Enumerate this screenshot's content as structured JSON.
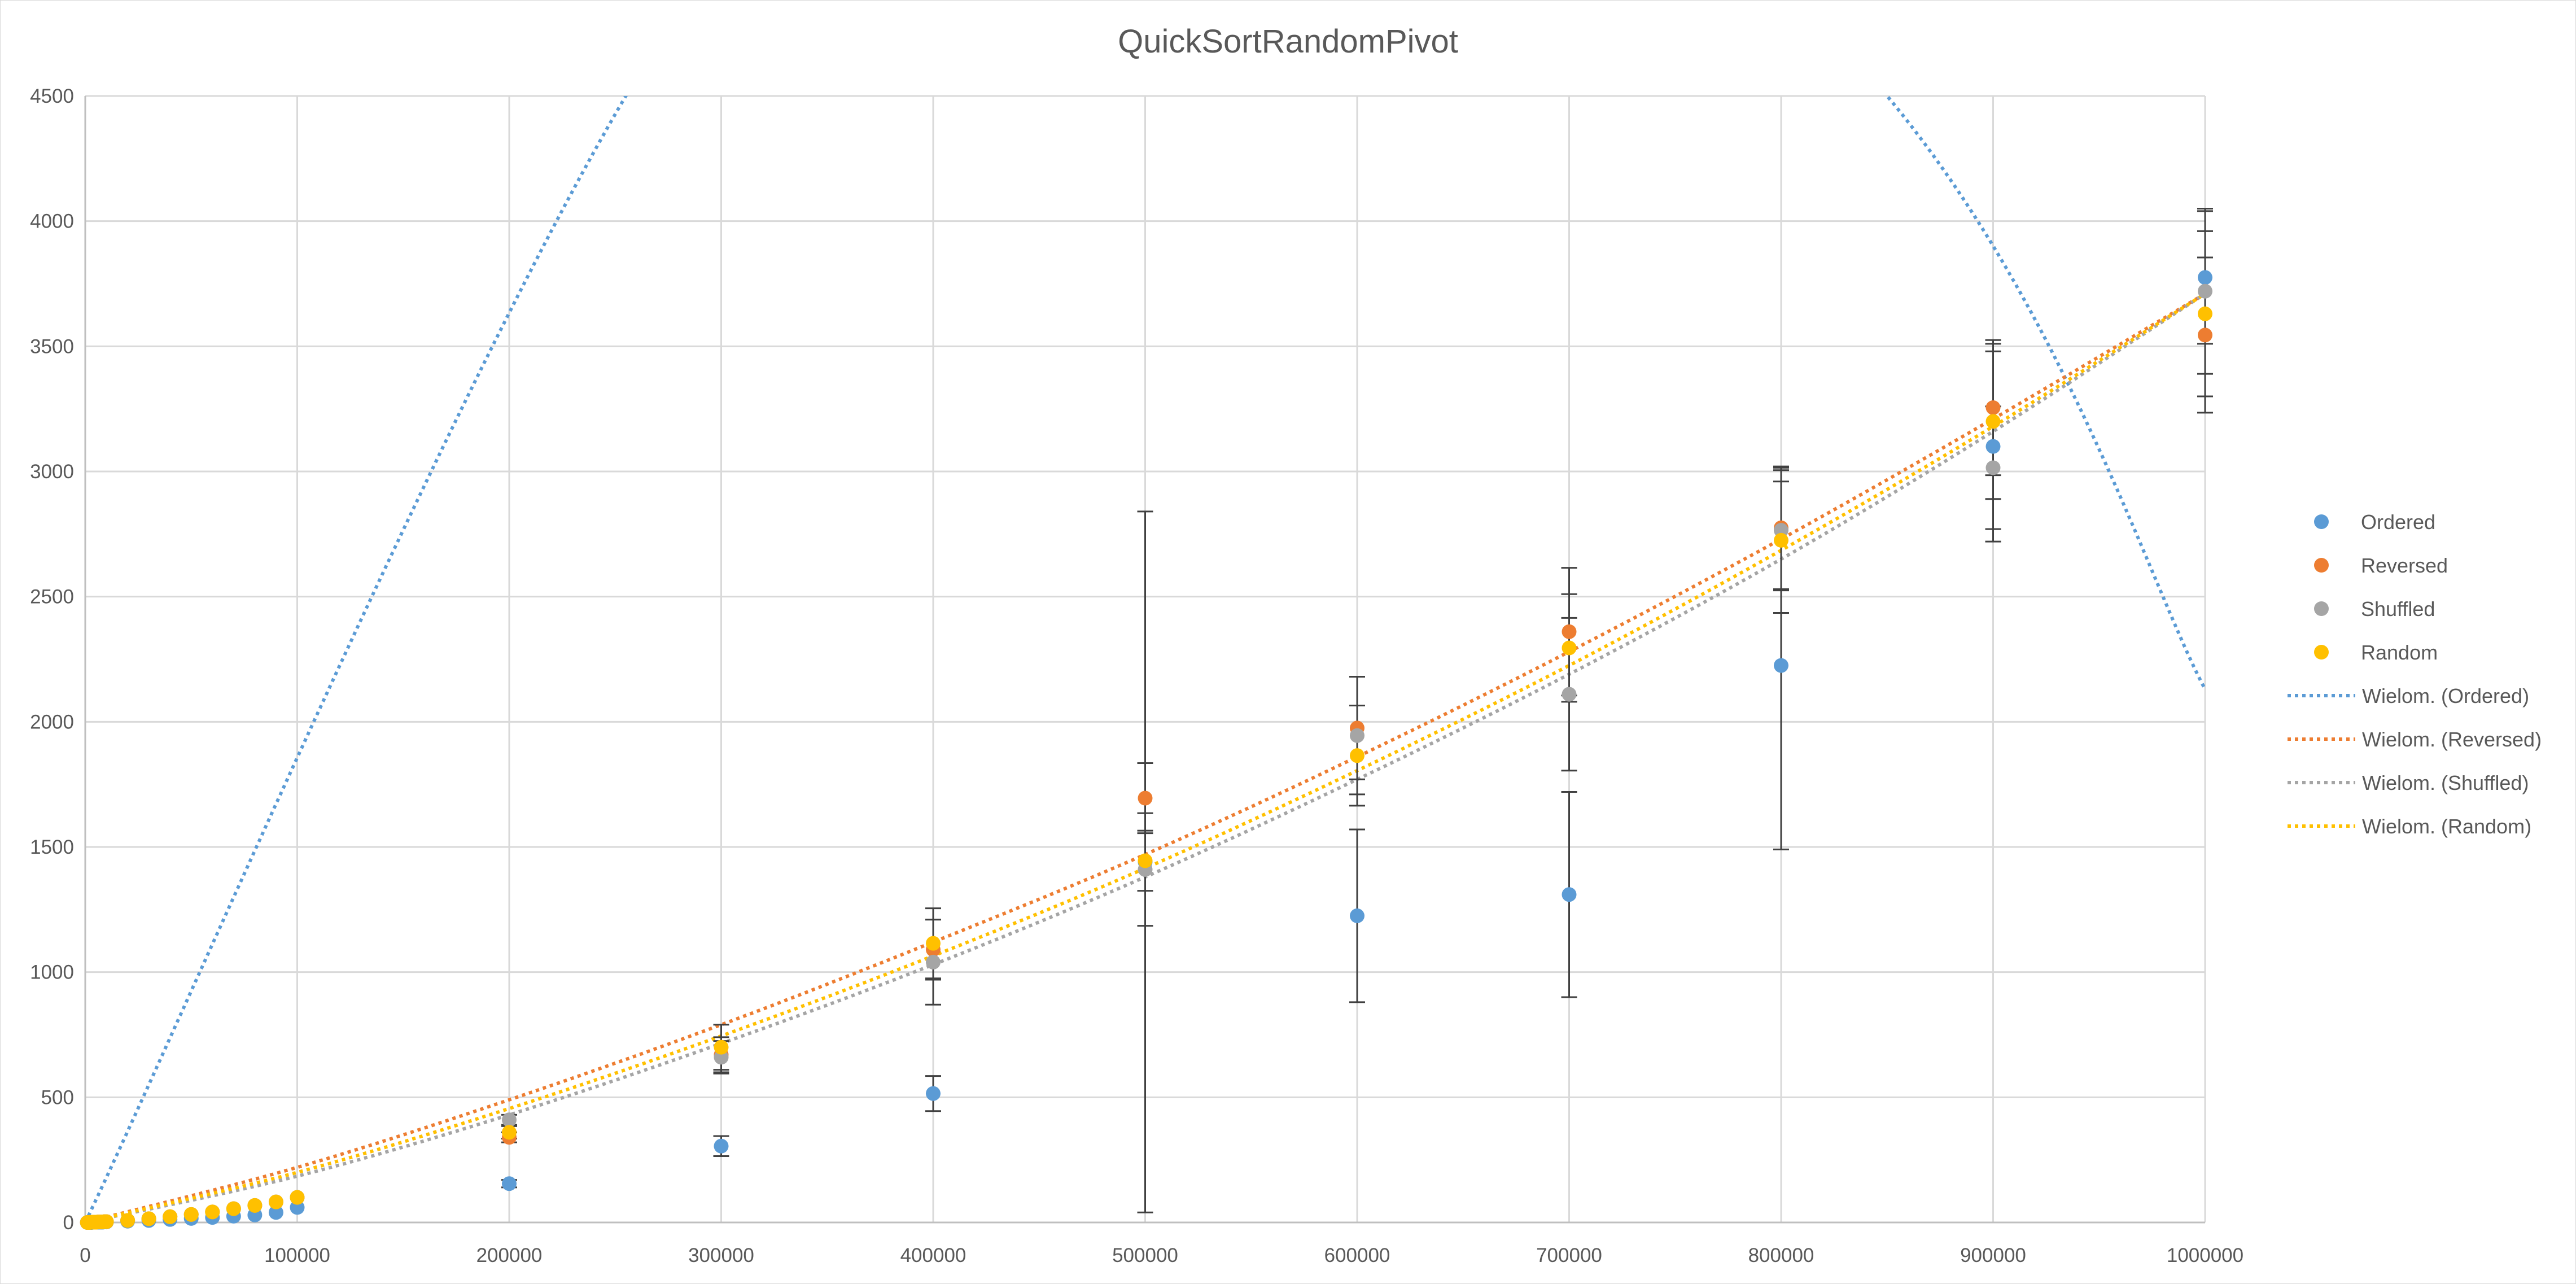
{
  "chart_data": {
    "type": "scatter",
    "title": "QuickSortRandomPivot",
    "xlabel": "",
    "ylabel": "",
    "xlim": [
      0,
      1000000
    ],
    "ylim": [
      0,
      4500
    ],
    "x_ticks": [
      0,
      100000,
      200000,
      300000,
      400000,
      500000,
      600000,
      700000,
      800000,
      900000,
      1000000
    ],
    "y_ticks": [
      0,
      500,
      1000,
      1500,
      2000,
      2500,
      3000,
      3500,
      4000,
      4500
    ],
    "grid": true,
    "legend_position": "right",
    "series": [
      {
        "name": "Ordered",
        "color": "#5B9BD5",
        "x": [
          1000,
          2000,
          3000,
          4000,
          5000,
          6000,
          7000,
          8000,
          9000,
          10000,
          20000,
          30000,
          40000,
          50000,
          60000,
          70000,
          80000,
          90000,
          100000,
          200000,
          300000,
          400000,
          500000,
          600000,
          700000,
          800000,
          900000,
          1000000
        ],
        "y": [
          0,
          0,
          0,
          1,
          1,
          1,
          1,
          1,
          2,
          2,
          5,
          8,
          12,
          16,
          20,
          25,
          30,
          40,
          60,
          155,
          305,
          515,
          1440,
          1225,
          1310,
          2225,
          3100,
          3775
        ],
        "error": [
          0,
          0,
          0,
          0,
          0,
          0,
          0,
          0,
          0,
          0,
          0,
          0,
          0,
          0,
          0,
          0,
          0,
          0,
          0,
          15,
          40,
          70,
          1400,
          345,
          410,
          735,
          380,
          265
        ]
      },
      {
        "name": "Reversed",
        "color": "#ED7D31",
        "x": [
          1000,
          2000,
          3000,
          4000,
          5000,
          6000,
          7000,
          8000,
          9000,
          10000,
          20000,
          30000,
          40000,
          50000,
          60000,
          70000,
          80000,
          90000,
          100000,
          200000,
          300000,
          400000,
          500000,
          600000,
          700000,
          800000,
          900000,
          1000000
        ],
        "y": [
          0,
          0,
          1,
          1,
          1,
          2,
          2,
          2,
          3,
          3,
          8,
          15,
          23,
          32,
          42,
          55,
          68,
          82,
          100,
          340,
          670,
          1090,
          1695,
          1975,
          2360,
          2775,
          3255,
          3545
        ],
        "error": [
          0,
          0,
          0,
          0,
          0,
          0,
          0,
          0,
          0,
          0,
          0,
          0,
          0,
          0,
          0,
          0,
          0,
          0,
          0,
          20,
          70,
          120,
          140,
          205,
          255,
          245,
          270,
          310
        ]
      },
      {
        "name": "Shuffled",
        "color": "#A5A5A5",
        "x": [
          1000,
          2000,
          3000,
          4000,
          5000,
          6000,
          7000,
          8000,
          9000,
          10000,
          20000,
          30000,
          40000,
          50000,
          60000,
          70000,
          80000,
          90000,
          100000,
          200000,
          300000,
          400000,
          500000,
          600000,
          700000,
          800000,
          900000,
          1000000
        ],
        "y": [
          0,
          0,
          1,
          1,
          1,
          2,
          2,
          2,
          3,
          3,
          8,
          15,
          23,
          32,
          42,
          55,
          68,
          82,
          100,
          410,
          660,
          1040,
          1410,
          1945,
          2110,
          2765,
          3015,
          3720
        ],
        "error": [
          0,
          0,
          0,
          0,
          0,
          0,
          0,
          0,
          0,
          0,
          0,
          0,
          0,
          0,
          0,
          0,
          0,
          0,
          0,
          20,
          65,
          170,
          225,
          235,
          305,
          240,
          245,
          330
        ]
      },
      {
        "name": "Random",
        "color": "#FFC000",
        "x": [
          1000,
          2000,
          3000,
          4000,
          5000,
          6000,
          7000,
          8000,
          9000,
          10000,
          20000,
          30000,
          40000,
          50000,
          60000,
          70000,
          80000,
          90000,
          100000,
          200000,
          300000,
          400000,
          500000,
          600000,
          700000,
          800000,
          900000,
          1000000
        ],
        "y": [
          0,
          0,
          1,
          1,
          1,
          2,
          2,
          2,
          3,
          3,
          8,
          15,
          23,
          32,
          42,
          55,
          68,
          82,
          100,
          360,
          700,
          1115,
          1445,
          1865,
          2295,
          2725,
          3200,
          3630
        ],
        "error": [
          0,
          0,
          0,
          0,
          0,
          0,
          0,
          0,
          0,
          0,
          0,
          0,
          0,
          0,
          0,
          0,
          0,
          0,
          0,
          25,
          90,
          140,
          120,
          200,
          215,
          290,
          310,
          330
        ]
      }
    ],
    "trendlines": [
      {
        "name": "Wielom. (Ordered)",
        "color": "#5B9BD5",
        "style": "dotted",
        "x": [
          0,
          255000,
          500000,
          850000,
          1000000
        ],
        "y": [
          0,
          4500,
          7200,
          4500,
          2130
        ]
      },
      {
        "name": "Wielom. (Reversed)",
        "color": "#ED7D31",
        "style": "dotted",
        "x": [
          0,
          100000,
          200000,
          300000,
          400000,
          500000,
          600000,
          700000,
          800000,
          900000,
          1000000
        ],
        "y": [
          0,
          220,
          490,
          790,
          1120,
          1470,
          1860,
          2280,
          2730,
          3210,
          3710
        ]
      },
      {
        "name": "Wielom. (Shuffled)",
        "color": "#A5A5A5",
        "style": "dotted",
        "x": [
          0,
          100000,
          200000,
          300000,
          400000,
          500000,
          600000,
          700000,
          800000,
          900000,
          1000000
        ],
        "y": [
          0,
          185,
          430,
          715,
          1030,
          1380,
          1770,
          2190,
          2650,
          3160,
          3710
        ]
      },
      {
        "name": "Wielom. (Random)",
        "color": "#FFC000",
        "style": "dotted",
        "x": [
          0,
          100000,
          200000,
          300000,
          400000,
          500000,
          600000,
          700000,
          800000,
          900000,
          1000000
        ],
        "y": [
          0,
          200,
          455,
          745,
          1065,
          1415,
          1805,
          2225,
          2685,
          3180,
          3710
        ]
      }
    ]
  }
}
